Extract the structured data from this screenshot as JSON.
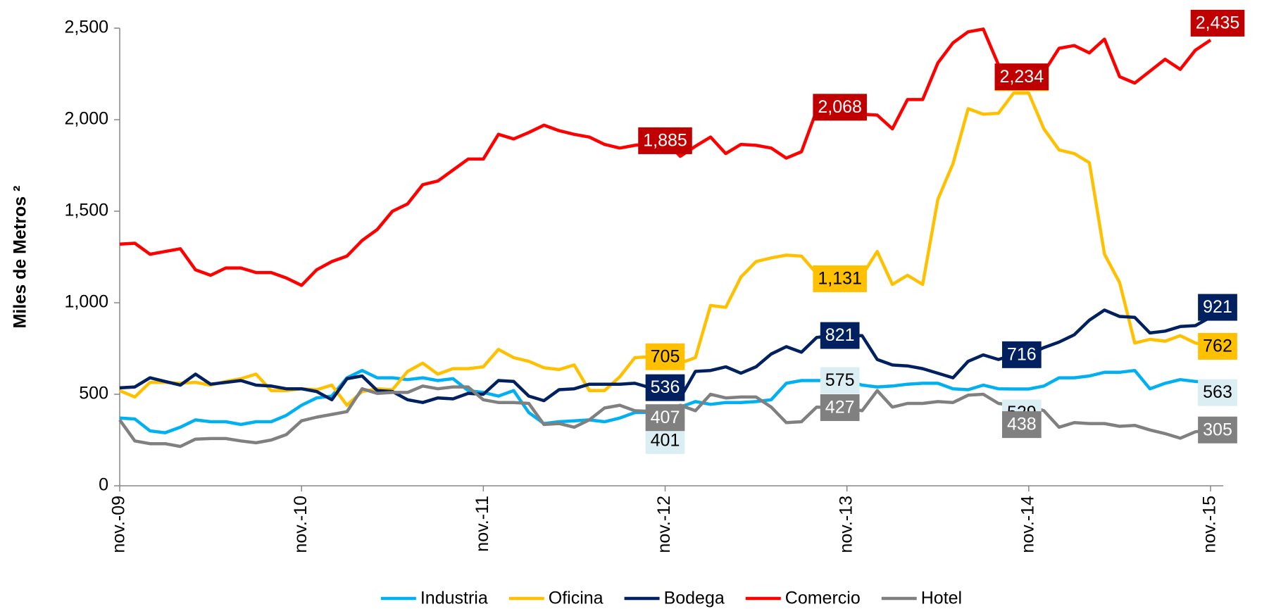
{
  "chart_data": {
    "type": "line",
    "ylabel": "Miles de Metros ²",
    "categories": [
      "nov.-09",
      null,
      null,
      null,
      null,
      null,
      null,
      null,
      null,
      null,
      null,
      null,
      "nov.-10",
      null,
      null,
      null,
      null,
      null,
      null,
      null,
      null,
      null,
      null,
      null,
      "nov.-11",
      null,
      null,
      null,
      null,
      null,
      null,
      null,
      null,
      null,
      null,
      null,
      "nov.-12",
      null,
      null,
      null,
      null,
      null,
      null,
      null,
      null,
      null,
      null,
      null,
      "nov.-13",
      null,
      null,
      null,
      null,
      null,
      null,
      null,
      null,
      null,
      null,
      null,
      "nov.-14",
      null,
      null,
      null,
      null,
      null,
      null,
      null,
      null,
      null,
      null,
      null,
      "nov.-15"
    ],
    "ylim": [
      0,
      2500
    ],
    "yticks": [
      0,
      500,
      {
        "value": 1000,
        "label": "1,000"
      },
      {
        "value": 1500,
        "label": "1,500"
      },
      {
        "value": 2000,
        "label": "2,000"
      },
      {
        "value": 2500,
        "label": "2,500"
      }
    ],
    "grid": false,
    "legend": "bottom",
    "series": [
      {
        "name": "Industria",
        "color": "#00b0f0",
        "label_color": "#daeef3",
        "label_text_color": "#000000",
        "values": [
          370,
          365,
          300,
          290,
          320,
          360,
          350,
          350,
          335,
          350,
          350,
          385,
          440,
          480,
          490,
          590,
          630,
          590,
          590,
          580,
          590,
          575,
          585,
          520,
          510,
          490,
          520,
          400,
          340,
          350,
          355,
          360,
          350,
          370,
          400,
          401,
          401,
          430,
          460,
          445,
          455,
          455,
          460,
          470,
          560,
          575,
          575,
          575,
          575,
          550,
          540,
          545,
          555,
          560,
          560,
          530,
          525,
          550,
          530,
          529,
          529,
          545,
          590,
          590,
          600,
          620,
          620,
          630,
          530,
          560,
          580,
          570,
          563
        ],
        "value_labels": [
          null,
          null,
          null,
          null,
          null,
          null,
          null,
          null,
          null,
          null,
          null,
          null,
          null,
          null,
          null,
          null,
          null,
          null,
          null,
          null,
          null,
          null,
          null,
          null,
          null,
          null,
          null,
          null,
          null,
          null,
          null,
          null,
          null,
          null,
          null,
          null,
          "401",
          null,
          null,
          null,
          null,
          null,
          null,
          null,
          null,
          null,
          null,
          null,
          "575",
          null,
          null,
          null,
          null,
          null,
          null,
          null,
          null,
          null,
          null,
          null,
          "529",
          null,
          null,
          null,
          null,
          null,
          null,
          null,
          null,
          null,
          null,
          null,
          "563"
        ]
      },
      {
        "name": "Oficina",
        "color": "#ffc000",
        "label_color": "#ffc000",
        "label_text_color": "#000000",
        "values": [
          520,
          485,
          565,
          565,
          560,
          565,
          550,
          570,
          585,
          610,
          520,
          520,
          530,
          525,
          550,
          440,
          515,
          530,
          525,
          625,
          670,
          610,
          640,
          640,
          650,
          745,
          700,
          680,
          645,
          635,
          660,
          520,
          520,
          595,
          700,
          705,
          705,
          670,
          700,
          985,
          975,
          1140,
          1225,
          1245,
          1260,
          1255,
          1160,
          1131,
          1131,
          1150,
          1280,
          1100,
          1150,
          1100,
          1565,
          1760,
          2060,
          2030,
          2035,
          2145,
          2145,
          1950,
          1835,
          1815,
          1765,
          1265,
          1110,
          780,
          800,
          790,
          820,
          780,
          762
        ],
        "value_labels": [
          null,
          null,
          null,
          null,
          null,
          null,
          null,
          null,
          null,
          null,
          null,
          null,
          null,
          null,
          null,
          null,
          null,
          null,
          null,
          null,
          null,
          null,
          null,
          null,
          null,
          null,
          null,
          null,
          null,
          null,
          null,
          null,
          null,
          null,
          null,
          null,
          "705",
          null,
          null,
          null,
          null,
          null,
          null,
          null,
          null,
          null,
          null,
          null,
          "1,131",
          null,
          null,
          null,
          null,
          null,
          null,
          null,
          null,
          null,
          null,
          null,
          "2,145",
          null,
          null,
          null,
          null,
          null,
          null,
          null,
          null,
          null,
          null,
          null,
          "762"
        ]
      },
      {
        "name": "Bodega",
        "color": "#002060",
        "label_color": "#002060",
        "label_text_color": "#ffffff",
        "values": [
          535,
          540,
          590,
          570,
          550,
          610,
          555,
          565,
          575,
          550,
          545,
          530,
          530,
          515,
          470,
          585,
          600,
          520,
          515,
          470,
          455,
          480,
          475,
          505,
          500,
          575,
          570,
          490,
          465,
          525,
          530,
          555,
          555,
          555,
          560,
          536,
          536,
          480,
          625,
          630,
          650,
          615,
          650,
          720,
          760,
          730,
          810,
          821,
          821,
          820,
          690,
          660,
          655,
          640,
          615,
          590,
          680,
          715,
          690,
          716,
          716,
          755,
          785,
          825,
          905,
          960,
          925,
          920,
          835,
          845,
          870,
          875,
          921
        ],
        "value_labels": [
          null,
          null,
          null,
          null,
          null,
          null,
          null,
          null,
          null,
          null,
          null,
          null,
          null,
          null,
          null,
          null,
          null,
          null,
          null,
          null,
          null,
          null,
          null,
          null,
          null,
          null,
          null,
          null,
          null,
          null,
          null,
          null,
          null,
          null,
          null,
          null,
          "536",
          null,
          null,
          null,
          null,
          null,
          null,
          null,
          null,
          null,
          null,
          null,
          "821",
          null,
          null,
          null,
          null,
          null,
          null,
          null,
          null,
          null,
          null,
          null,
          "716",
          null,
          null,
          null,
          null,
          null,
          null,
          null,
          null,
          null,
          null,
          null,
          "921"
        ]
      },
      {
        "name": "Comercio",
        "color": "#ff0000",
        "label_color": "#c00000",
        "label_text_color": "#ffffff",
        "values": [
          1320,
          1325,
          1265,
          1280,
          1295,
          1180,
          1150,
          1190,
          1190,
          1165,
          1165,
          1135,
          1095,
          1180,
          1225,
          1255,
          1340,
          1400,
          1500,
          1540,
          1645,
          1665,
          1725,
          1785,
          1785,
          1920,
          1895,
          1930,
          1970,
          1940,
          1920,
          1905,
          1865,
          1845,
          1860,
          1870,
          1885,
          1800,
          1855,
          1905,
          1815,
          1865,
          1860,
          1845,
          1790,
          1825,
          2050,
          2060,
          2068,
          2030,
          2025,
          1950,
          2110,
          2110,
          2310,
          2420,
          2480,
          2495,
          2300,
          2250,
          2234,
          2260,
          2390,
          2405,
          2365,
          2440,
          2235,
          2200,
          2265,
          2330,
          2275,
          2380,
          2435
        ],
        "value_labels": [
          null,
          null,
          null,
          null,
          null,
          null,
          null,
          null,
          null,
          null,
          null,
          null,
          null,
          null,
          null,
          null,
          null,
          null,
          null,
          null,
          null,
          null,
          null,
          null,
          null,
          null,
          null,
          null,
          null,
          null,
          null,
          null,
          null,
          null,
          null,
          null,
          "1,885",
          null,
          null,
          null,
          null,
          null,
          null,
          null,
          null,
          null,
          null,
          null,
          "2,068",
          null,
          null,
          null,
          null,
          null,
          null,
          null,
          null,
          null,
          null,
          null,
          "2,234",
          null,
          null,
          null,
          null,
          null,
          null,
          null,
          null,
          null,
          null,
          null,
          "2,435"
        ]
      },
      {
        "name": "Hotel",
        "color": "#808080",
        "label_color": "#808080",
        "label_text_color": "#ffffff",
        "values": [
          360,
          245,
          230,
          230,
          215,
          255,
          258,
          258,
          245,
          235,
          250,
          280,
          355,
          375,
          390,
          405,
          530,
          505,
          510,
          510,
          545,
          530,
          540,
          540,
          470,
          455,
          455,
          450,
          335,
          340,
          320,
          360,
          425,
          440,
          410,
          407,
          407,
          440,
          410,
          500,
          480,
          485,
          485,
          430,
          345,
          350,
          430,
          427,
          427,
          410,
          520,
          430,
          450,
          450,
          460,
          455,
          495,
          500,
          450,
          438,
          438,
          410,
          320,
          345,
          340,
          340,
          325,
          330,
          305,
          285,
          260,
          295,
          305
        ],
        "value_labels": [
          null,
          null,
          null,
          null,
          null,
          null,
          null,
          null,
          null,
          null,
          null,
          null,
          null,
          null,
          null,
          null,
          null,
          null,
          null,
          null,
          null,
          null,
          null,
          null,
          null,
          null,
          null,
          null,
          null,
          null,
          null,
          null,
          null,
          null,
          null,
          null,
          "407",
          null,
          null,
          null,
          null,
          null,
          null,
          null,
          null,
          null,
          null,
          null,
          "427",
          null,
          null,
          null,
          null,
          null,
          null,
          null,
          null,
          null,
          null,
          null,
          "438",
          null,
          null,
          null,
          null,
          null,
          null,
          null,
          null,
          null,
          null,
          null,
          "305"
        ]
      }
    ]
  }
}
